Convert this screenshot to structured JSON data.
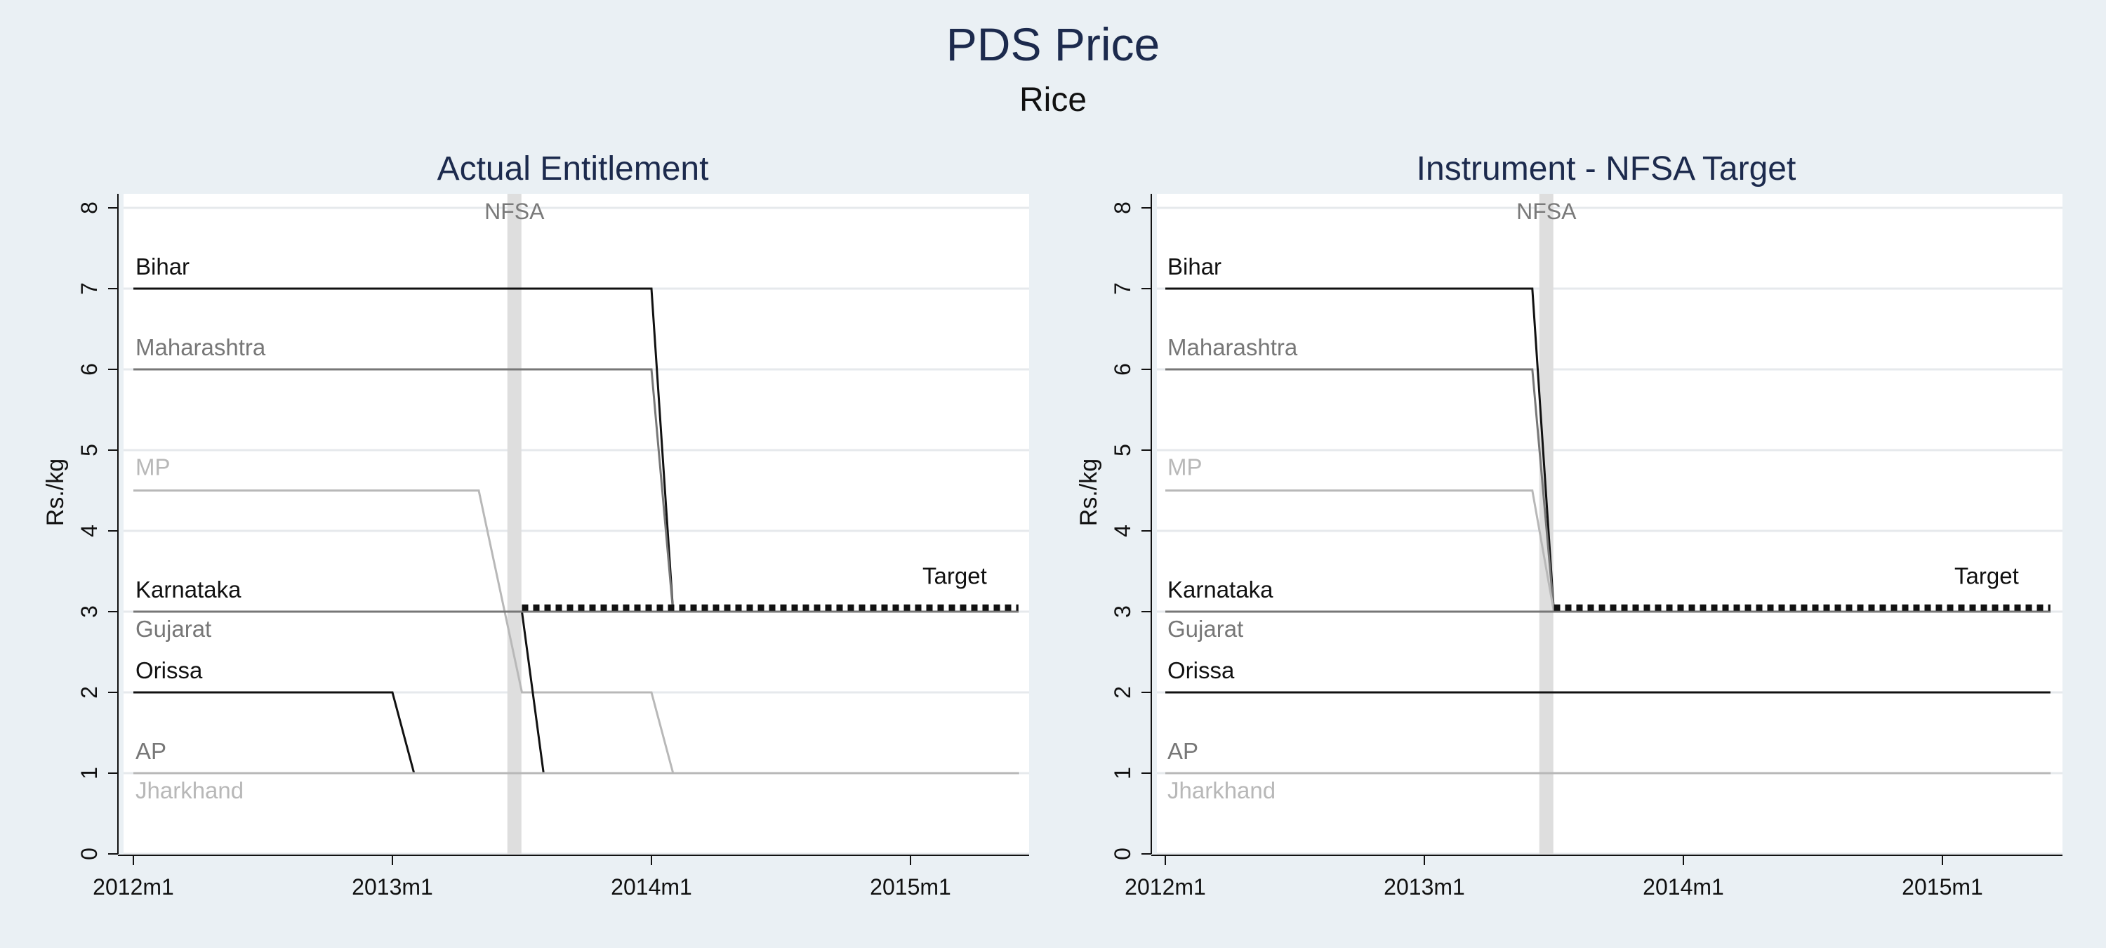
{
  "title": "PDS Price",
  "subtitle": "Rice",
  "colors": {
    "background": "#eaf0f4",
    "plot_background": "#ffffff",
    "grid": "#e6e9ec",
    "title": "#1c2a4d",
    "nfsa_band": "#dedede",
    "black_series": "#111111",
    "dark_gray_series": "#777777",
    "light_gray_series": "#b8b8b8"
  },
  "chart_data": [
    {
      "type": "line",
      "title": "Actual Entitlement",
      "ylabel": "Rs./kg",
      "xlabel": "",
      "x_tick_labels": [
        "2012m1",
        "2013m1",
        "2014m1",
        "2015m1"
      ],
      "y_tick_labels": [
        "0",
        "1",
        "2",
        "3",
        "4",
        "5",
        "6",
        "7",
        "8"
      ],
      "ylim": [
        0,
        8
      ],
      "xlim": [
        "2012m1",
        "2015m6"
      ],
      "grid": true,
      "vertical_band": {
        "label": "NFSA",
        "from": "2013m6",
        "to": "2013m7"
      },
      "series": [
        {
          "name": "Bihar",
          "color": "#111111",
          "style": "solid",
          "points": [
            [
              "2012m1",
              7
            ],
            [
              "2014m1",
              7
            ],
            [
              "2014m2",
              3
            ],
            [
              "2015m6",
              3
            ]
          ]
        },
        {
          "name": "Maharashtra",
          "color": "#777777",
          "style": "solid",
          "points": [
            [
              "2012m1",
              6
            ],
            [
              "2014m1",
              6
            ],
            [
              "2014m2",
              3
            ],
            [
              "2015m6",
              3
            ]
          ]
        },
        {
          "name": "MP",
          "color": "#b8b8b8",
          "style": "solid",
          "points": [
            [
              "2012m1",
              4.5
            ],
            [
              "2013m5",
              4.5
            ],
            [
              "2013m7",
              2
            ],
            [
              "2014m1",
              2
            ],
            [
              "2014m2",
              1
            ],
            [
              "2015m6",
              1
            ]
          ]
        },
        {
          "name": "Karnataka",
          "color": "#111111",
          "style": "solid",
          "points": [
            [
              "2012m1",
              3
            ],
            [
              "2013m7",
              3
            ],
            [
              "2013m8",
              1
            ],
            [
              "2015m6",
              1
            ]
          ]
        },
        {
          "name": "Gujarat",
          "color": "#777777",
          "style": "solid",
          "points": [
            [
              "2012m1",
              3
            ],
            [
              "2015m6",
              3
            ]
          ]
        },
        {
          "name": "Orissa",
          "color": "#111111",
          "style": "solid",
          "points": [
            [
              "2012m1",
              2
            ],
            [
              "2013m1",
              2
            ],
            [
              "2013m2",
              1
            ],
            [
              "2015m6",
              1
            ]
          ]
        },
        {
          "name": "AP",
          "color": "#777777",
          "style": "solid",
          "points": [
            [
              "2012m1",
              1
            ],
            [
              "2015m6",
              1
            ]
          ]
        },
        {
          "name": "Jharkhand",
          "color": "#b8b8b8",
          "style": "solid",
          "points": [
            [
              "2012m1",
              1
            ],
            [
              "2015m6",
              1
            ]
          ]
        },
        {
          "name": "Target",
          "color": "#111111",
          "style": "dotted",
          "points": [
            [
              "2013m7",
              3.05
            ],
            [
              "2015m6",
              3.05
            ]
          ]
        }
      ]
    },
    {
      "type": "line",
      "title": "Instrument - NFSA Target",
      "ylabel": "Rs./kg",
      "xlabel": "",
      "x_tick_labels": [
        "2012m1",
        "2013m1",
        "2014m1",
        "2015m1"
      ],
      "y_tick_labels": [
        "0",
        "1",
        "2",
        "3",
        "4",
        "5",
        "6",
        "7",
        "8"
      ],
      "ylim": [
        0,
        8
      ],
      "xlim": [
        "2012m1",
        "2015m6"
      ],
      "grid": true,
      "vertical_band": {
        "label": "NFSA",
        "from": "2013m6",
        "to": "2013m7"
      },
      "series": [
        {
          "name": "Bihar",
          "color": "#111111",
          "style": "solid",
          "points": [
            [
              "2012m1",
              7
            ],
            [
              "2013m6",
              7
            ],
            [
              "2013m7",
              3
            ],
            [
              "2015m6",
              3
            ]
          ]
        },
        {
          "name": "Maharashtra",
          "color": "#777777",
          "style": "solid",
          "points": [
            [
              "2012m1",
              6
            ],
            [
              "2013m6",
              6
            ],
            [
              "2013m7",
              3
            ],
            [
              "2015m6",
              3
            ]
          ]
        },
        {
          "name": "MP",
          "color": "#b8b8b8",
          "style": "solid",
          "points": [
            [
              "2012m1",
              4.5
            ],
            [
              "2013m6",
              4.5
            ],
            [
              "2013m7",
              3
            ],
            [
              "2015m6",
              3
            ]
          ]
        },
        {
          "name": "Karnataka",
          "color": "#111111",
          "style": "solid",
          "points": [
            [
              "2012m1",
              3
            ],
            [
              "2015m6",
              3
            ]
          ]
        },
        {
          "name": "Gujarat",
          "color": "#777777",
          "style": "solid",
          "points": [
            [
              "2012m1",
              3
            ],
            [
              "2015m6",
              3
            ]
          ]
        },
        {
          "name": "Orissa",
          "color": "#111111",
          "style": "solid",
          "points": [
            [
              "2012m1",
              2
            ],
            [
              "2015m6",
              2
            ]
          ]
        },
        {
          "name": "AP",
          "color": "#777777",
          "style": "solid",
          "points": [
            [
              "2012m1",
              1
            ],
            [
              "2015m6",
              1
            ]
          ]
        },
        {
          "name": "Jharkhand",
          "color": "#b8b8b8",
          "style": "solid",
          "points": [
            [
              "2012m1",
              1
            ],
            [
              "2015m6",
              1
            ]
          ]
        },
        {
          "name": "Target",
          "color": "#111111",
          "style": "dotted",
          "points": [
            [
              "2013m7",
              3.05
            ],
            [
              "2015m6",
              3.05
            ]
          ]
        }
      ]
    }
  ]
}
